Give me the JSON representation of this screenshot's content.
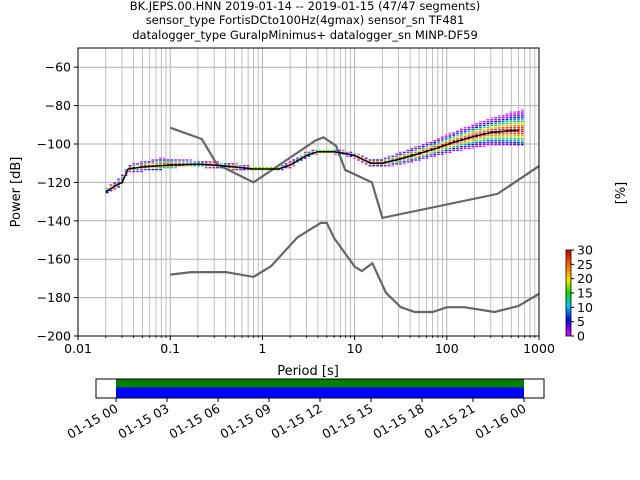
{
  "chart_data": {
    "type": "heatmap",
    "title_lines": [
      "BK.JEPS.00.HNN   2019-01-14 -- 2019-01-15  (47/47 segments)",
      "sensor_type FortisDCto100Hz(4gmax) sensor_sn TF481",
      "datalogger_type GuralpMinimus+ datalogger_sn MINP-DF59"
    ],
    "xlabel": "Period [s]",
    "ylabel": "Power [dB]",
    "xscale": "log",
    "xlim": [
      0.01,
      1000
    ],
    "ylim": [
      -200,
      -50
    ],
    "x_ticks": [
      0.01,
      0.1,
      1,
      10,
      100,
      1000
    ],
    "x_tick_labels": [
      "0.01",
      "0.1",
      "1",
      "10",
      "100",
      "1000"
    ],
    "y_ticks": [
      -200,
      -180,
      -160,
      -140,
      -120,
      -100,
      -80,
      -60
    ],
    "y_tick_labels": [
      "−200",
      "−180",
      "−160",
      "−140",
      "−120",
      "−100",
      "−80",
      "−60"
    ],
    "grid": true,
    "colorbar": {
      "label": "[%]",
      "range": [
        0,
        30
      ],
      "ticks": [
        0,
        5,
        10,
        15,
        20,
        25,
        30
      ],
      "tick_labels": [
        "0",
        "5",
        "10",
        "15",
        "20",
        "25",
        "30"
      ]
    },
    "noise_models": [
      {
        "name": "NHNM",
        "color": "#666666",
        "points": [
          [
            0.1,
            -91.5
          ],
          [
            0.22,
            -97.4
          ],
          [
            0.32,
            -110.5
          ],
          [
            0.8,
            -120
          ],
          [
            3.8,
            -98
          ],
          [
            4.6,
            -96.5
          ],
          [
            6.3,
            -101
          ],
          [
            7.9,
            -113.5
          ],
          [
            15.4,
            -120
          ],
          [
            20,
            -138.5
          ],
          [
            354.8,
            -126
          ],
          [
            1000,
            -111.5
          ]
        ]
      },
      {
        "name": "NLNM",
        "color": "#666666",
        "points": [
          [
            0.1,
            -168
          ],
          [
            0.17,
            -166.7
          ],
          [
            0.4,
            -166.7
          ],
          [
            0.8,
            -169.2
          ],
          [
            1.24,
            -163.7
          ],
          [
            2.4,
            -148.6
          ],
          [
            4.3,
            -141.1
          ],
          [
            5,
            -141.1
          ],
          [
            6,
            -149
          ],
          [
            10,
            -163.8
          ],
          [
            12,
            -166.2
          ],
          [
            15.6,
            -162.1
          ],
          [
            21.9,
            -177.5
          ],
          [
            31.6,
            -185
          ],
          [
            45,
            -187.5
          ],
          [
            70,
            -187.5
          ],
          [
            101,
            -185
          ],
          [
            154,
            -185
          ],
          [
            328,
            -187.5
          ],
          [
            600,
            -184.4
          ],
          [
            1000,
            -178
          ]
        ]
      }
    ],
    "mean_curve": {
      "color": "#000000",
      "points": [
        [
          0.02,
          -125
        ],
        [
          0.025,
          -122
        ],
        [
          0.03,
          -120
        ],
        [
          0.035,
          -113
        ],
        [
          0.05,
          -112
        ],
        [
          0.1,
          -111
        ],
        [
          0.2,
          -110.5
        ],
        [
          0.3,
          -111
        ],
        [
          0.5,
          -112
        ],
        [
          0.8,
          -113
        ],
        [
          1.5,
          -113
        ],
        [
          2,
          -111
        ],
        [
          3,
          -106
        ],
        [
          4,
          -104
        ],
        [
          6,
          -104
        ],
        [
          8,
          -105
        ],
        [
          10,
          -106
        ],
        [
          15,
          -110
        ],
        [
          20,
          -110
        ],
        [
          30,
          -108
        ],
        [
          50,
          -105
        ],
        [
          80,
          -102
        ],
        [
          120,
          -99
        ],
        [
          200,
          -96
        ],
        [
          300,
          -94
        ],
        [
          500,
          -93
        ],
        [
          600,
          -93
        ]
      ]
    },
    "histogram_band": {
      "x": [
        0.02,
        0.025,
        0.03,
        0.035,
        0.05,
        0.08,
        0.12,
        0.2,
        0.3,
        0.5,
        0.8,
        1.5,
        2,
        3,
        4,
        6,
        8,
        10,
        15,
        20,
        30,
        50,
        80,
        120,
        200,
        300,
        500,
        700
      ],
      "low": [
        -127,
        -124,
        -122,
        -115,
        -114,
        -113,
        -112,
        -112,
        -113,
        -114,
        -114,
        -114,
        -113,
        -108,
        -105,
        -105,
        -106,
        -107,
        -112,
        -113,
        -111,
        -109,
        -107,
        -105,
        -103,
        -101,
        -101,
        -101
      ],
      "high": [
        -123,
        -120,
        -115,
        -111,
        -108,
        -105,
        -105,
        -108,
        -109,
        -110,
        -112,
        -112,
        -109,
        -104,
        -102,
        -102,
        -103,
        -104,
        -107,
        -108,
        -104,
        -100,
        -97,
        -93,
        -89,
        -85,
        -80,
        -77
      ],
      "peak": [
        -125,
        -122,
        -120,
        -113,
        -112,
        -111,
        -111,
        -110.5,
        -111,
        -112,
        -113,
        -113,
        -111,
        -106,
        -104,
        -104,
        -105,
        -106,
        -110,
        -110,
        -108,
        -105,
        -102,
        -99,
        -96,
        -94,
        -93,
        -93
      ]
    },
    "time_axis": {
      "tick_labels": [
        "01-15 00",
        "01-15 03",
        "01-15 06",
        "01-15 09",
        "01-15 12",
        "01-15 15",
        "01-15 18",
        "01-15 21",
        "01-16 00"
      ],
      "coverage_colors": [
        "#008000",
        "#0000ff"
      ],
      "coverage": [
        0,
        1
      ]
    }
  }
}
